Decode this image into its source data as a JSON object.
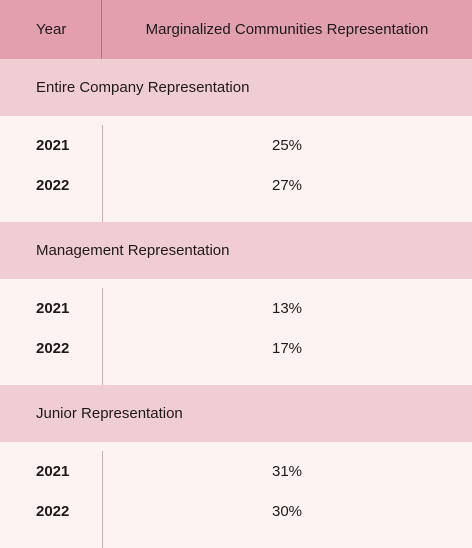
{
  "header": {
    "year_label": "Year",
    "value_label": "Marginalized Communities Representation"
  },
  "sections": [
    {
      "title": "Entire Company Representation",
      "rows": [
        {
          "year": "2021",
          "value": "25%"
        },
        {
          "year": "2022",
          "value": "27%"
        }
      ]
    },
    {
      "title": "Management Representation",
      "rows": [
        {
          "year": "2021",
          "value": "13%"
        },
        {
          "year": "2022",
          "value": "17%"
        }
      ]
    },
    {
      "title": "Junior Representation",
      "rows": [
        {
          "year": "2021",
          "value": "31%"
        },
        {
          "year": "2022",
          "value": "30%"
        }
      ]
    }
  ]
}
